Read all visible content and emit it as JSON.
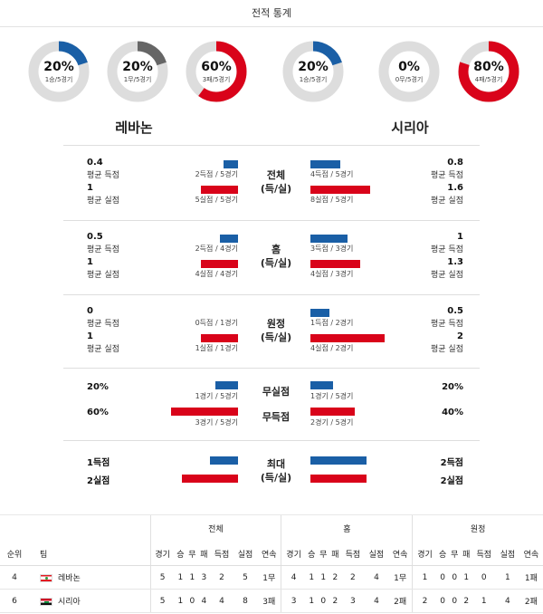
{
  "header": {
    "title": "전적 통계"
  },
  "colors": {
    "blue": "#1a5fa6",
    "red": "#d9031a",
    "gray": "#666666",
    "track": "#dddddd"
  },
  "donuts": [
    {
      "pct": 0.2,
      "big": "20%",
      "small": "1승/5경기",
      "color": "#1a5fa6"
    },
    {
      "pct": 0.2,
      "big": "20%",
      "small": "1무/5경기",
      "color": "#666666"
    },
    {
      "pct": 0.6,
      "big": "60%",
      "small": "3패/5경기",
      "color": "#d9031a"
    },
    {
      "pct": 0.2,
      "big": "20%",
      "small": "1승/5경기",
      "color": "#1a5fa6"
    },
    {
      "pct": 0.0,
      "big": "0%",
      "small": "0무/5경기",
      "color": "#666666"
    },
    {
      "pct": 0.8,
      "big": "80%",
      "small": "4패/5경기",
      "color": "#d9031a"
    }
  ],
  "teams": {
    "left": "레바논",
    "right": "시리아"
  },
  "stats": [
    {
      "label1": "전체",
      "label2": "(득/실)",
      "left": {
        "v1": "0.4",
        "l1": "평균 득점",
        "v2": "1",
        "l2": "평균 실점"
      },
      "right": {
        "v1": "0.8",
        "l1": "평균 득점",
        "v2": "1.6",
        "l2": "평균 실점"
      },
      "bars": [
        {
          "side": "left",
          "color": "blue",
          "frac": 0.4,
          "cap": "2득점 / 5경기"
        },
        {
          "side": "left",
          "color": "red",
          "frac": 1.0,
          "cap": "5실점 / 5경기"
        },
        {
          "side": "right",
          "color": "blue",
          "frac": 0.8,
          "cap": "4득점 / 5경기"
        },
        {
          "side": "right",
          "color": "red",
          "frac": 1.6,
          "cap": "8실점 / 5경기"
        }
      ]
    },
    {
      "label1": "홈",
      "label2": "(득/실)",
      "left": {
        "v1": "0.5",
        "l1": "평균 득점",
        "v2": "1",
        "l2": "평균 실점"
      },
      "right": {
        "v1": "1",
        "l1": "평균 득점",
        "v2": "1.3",
        "l2": "평균 실점"
      },
      "bars": [
        {
          "side": "left",
          "color": "blue",
          "frac": 0.5,
          "cap": "2득점 / 4경기"
        },
        {
          "side": "left",
          "color": "red",
          "frac": 1.0,
          "cap": "4실점 / 4경기"
        },
        {
          "side": "right",
          "color": "blue",
          "frac": 1.0,
          "cap": "3득점 / 3경기"
        },
        {
          "side": "right",
          "color": "red",
          "frac": 1.33,
          "cap": "4실점 / 3경기"
        }
      ]
    },
    {
      "label1": "원정",
      "label2": "(득/실)",
      "left": {
        "v1": "0",
        "l1": "평균 득점",
        "v2": "1",
        "l2": "평균 실점"
      },
      "right": {
        "v1": "0.5",
        "l1": "평균 득점",
        "v2": "2",
        "l2": "평균 실점"
      },
      "bars": [
        {
          "side": "left",
          "color": "blue",
          "frac": 0,
          "cap": "0득점 / 1경기"
        },
        {
          "side": "left",
          "color": "red",
          "frac": 1.0,
          "cap": "1실점 / 1경기"
        },
        {
          "side": "right",
          "color": "blue",
          "frac": 0.5,
          "cap": "1득점 / 2경기"
        },
        {
          "side": "right",
          "color": "red",
          "frac": 2.0,
          "cap": "4실점 / 2경기"
        }
      ]
    }
  ],
  "rates": {
    "label1": "무실점",
    "label2": "무득점",
    "left": {
      "v1": "20%",
      "v2": "60%"
    },
    "right": {
      "v1": "20%",
      "v2": "40%"
    },
    "bars": [
      {
        "side": "left",
        "color": "blue",
        "frac": 0.2,
        "cap": "1경기 / 5경기"
      },
      {
        "side": "left",
        "color": "red",
        "frac": 0.6,
        "cap": "3경기 / 5경기"
      },
      {
        "side": "right",
        "color": "blue",
        "frac": 0.2,
        "cap": "1경기 / 5경기"
      },
      {
        "side": "right",
        "color": "red",
        "frac": 0.4,
        "cap": "2경기 / 5경기"
      }
    ]
  },
  "max": {
    "label1": "최대",
    "label2": "(득/실)",
    "left": {
      "v1": "1득점",
      "v2": "2실점"
    },
    "right": {
      "v1": "2득점",
      "v2": "2실점"
    },
    "bars": [
      {
        "side": "left",
        "color": "blue",
        "frac": 1
      },
      {
        "side": "left",
        "color": "red",
        "frac": 2
      },
      {
        "side": "right",
        "color": "blue",
        "frac": 2
      },
      {
        "side": "right",
        "color": "red",
        "frac": 2
      }
    ]
  },
  "table": {
    "groups": [
      "전체",
      "홈",
      "원정"
    ],
    "cols_left": [
      "순위",
      "팀"
    ],
    "cols_group": [
      "경기",
      "승",
      "무",
      "패",
      "득점",
      "실점",
      "연속"
    ],
    "rows": [
      {
        "rank": "4",
        "team": "레바논",
        "flag": "lb",
        "total": [
          "5",
          "1",
          "1",
          "3",
          "2",
          "5",
          "1무"
        ],
        "home": [
          "4",
          "1",
          "1",
          "2",
          "2",
          "4",
          "1무"
        ],
        "away": [
          "1",
          "0",
          "0",
          "1",
          "0",
          "1",
          "1패"
        ]
      },
      {
        "rank": "6",
        "team": "시리아",
        "flag": "sy",
        "total": [
          "5",
          "1",
          "0",
          "4",
          "4",
          "8",
          "3패"
        ],
        "home": [
          "3",
          "1",
          "0",
          "2",
          "3",
          "4",
          "2패"
        ],
        "away": [
          "2",
          "0",
          "0",
          "2",
          "1",
          "4",
          "2패"
        ]
      }
    ]
  }
}
